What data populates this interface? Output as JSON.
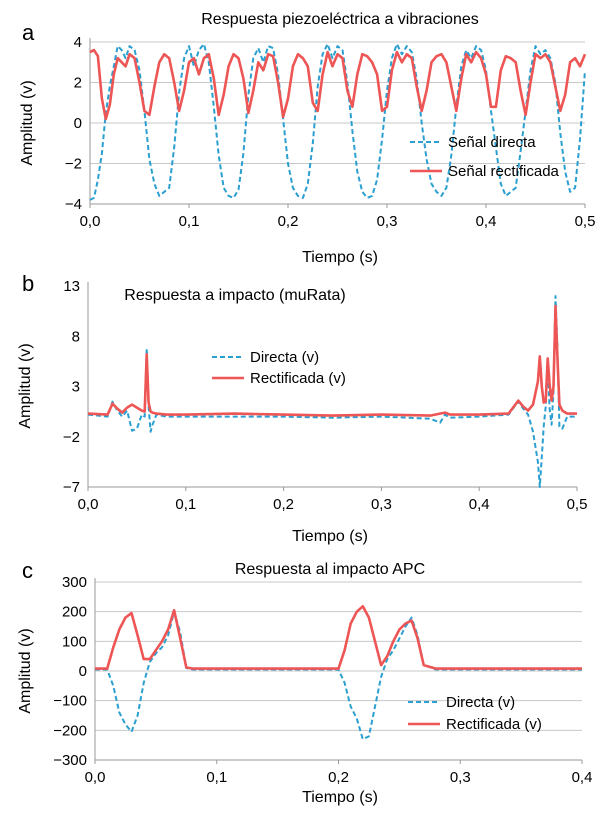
{
  "colors": {
    "direct": "#2a9fd0",
    "rectified": "#ee5555",
    "grid": "#c8c8c8",
    "axis": "#000000"
  },
  "chart_data": [
    {
      "panel_letter": "a",
      "type": "line",
      "title": "Respuesta piezoeléctrica a vibraciones",
      "xlabel": "Tiempo (s)",
      "ylabel": "Amplitud (v)",
      "xlim": [
        0,
        0.5
      ],
      "ylim": [
        -4,
        4
      ],
      "x_ticks": [
        "0,0",
        "0,1",
        "0,2",
        "0,3",
        "0,4",
        "0,5"
      ],
      "x_tick_values": [
        0,
        0.1,
        0.2,
        0.3,
        0.4,
        0.5
      ],
      "y_ticks": [
        "4",
        "2",
        "0",
        "−2",
        "−4"
      ],
      "y_tick_values": [
        4,
        2,
        0,
        -2,
        -4
      ],
      "grid": "horizontal",
      "legend_position": "right-inside",
      "series": [
        {
          "name": "Señal directa",
          "style": "dashed",
          "x": [
            0,
            0.004,
            0.008,
            0.012,
            0.016,
            0.02,
            0.024,
            0.028,
            0.032,
            0.036,
            0.04,
            0.045,
            0.05,
            0.055,
            0.06,
            0.065,
            0.07,
            0.075,
            0.08,
            0.085,
            0.09,
            0.095,
            0.1,
            0.105,
            0.11,
            0.115,
            0.12,
            0.125,
            0.13,
            0.135,
            0.14,
            0.145,
            0.15,
            0.155,
            0.16,
            0.165,
            0.17,
            0.175,
            0.18,
            0.185,
            0.19,
            0.195,
            0.2,
            0.205,
            0.21,
            0.215,
            0.22,
            0.225,
            0.23,
            0.235,
            0.24,
            0.245,
            0.25,
            0.255,
            0.26,
            0.265,
            0.27,
            0.275,
            0.28,
            0.285,
            0.29,
            0.295,
            0.3,
            0.305,
            0.31,
            0.315,
            0.32,
            0.325,
            0.33,
            0.335,
            0.34,
            0.345,
            0.35,
            0.355,
            0.36,
            0.365,
            0.37,
            0.375,
            0.38,
            0.385,
            0.39,
            0.395,
            0.4,
            0.405,
            0.41,
            0.415,
            0.42,
            0.425,
            0.43,
            0.435,
            0.44,
            0.445,
            0.45,
            0.455,
            0.46,
            0.465,
            0.47,
            0.475,
            0.48,
            0.485,
            0.49,
            0.495,
            0.5
          ],
          "y": [
            -3.8,
            -3.7,
            -2.8,
            -1.5,
            0.5,
            1.8,
            2.8,
            3.8,
            3.6,
            3.2,
            3.8,
            3.6,
            2.6,
            0.6,
            -1.8,
            -3.0,
            -3.6,
            -3.4,
            -3.2,
            -1.2,
            1.5,
            3.2,
            3.8,
            2.8,
            3.6,
            3.9,
            3.0,
            0.8,
            -1.6,
            -3.2,
            -3.6,
            -3.7,
            -3.3,
            -1.5,
            1.4,
            3.2,
            3.7,
            3.0,
            3.8,
            3.7,
            2.4,
            0.2,
            -2.0,
            -3.2,
            -3.6,
            -3.7,
            -3.0,
            -1.0,
            1.8,
            3.4,
            3.9,
            3.2,
            3.8,
            3.6,
            2.0,
            -0.4,
            -2.4,
            -3.4,
            -3.7,
            -3.6,
            -2.8,
            -0.8,
            1.6,
            3.2,
            3.9,
            3.4,
            3.8,
            3.5,
            2.2,
            0.0,
            -1.8,
            -3.0,
            -3.4,
            -3.6,
            -3.2,
            -1.6,
            0.8,
            2.8,
            3.6,
            3.2,
            3.8,
            3.6,
            2.6,
            0.6,
            -1.2,
            -3.0,
            -3.6,
            -3.4,
            -3.2,
            -1.4,
            0.6,
            2.6,
            3.8,
            3.4,
            3.6,
            3.2,
            2.0,
            -0.5,
            -2.4,
            -3.4,
            -3.2,
            -0.8,
            2.6
          ]
        },
        {
          "name": "Señal rectificada",
          "style": "solid",
          "x": [
            0,
            0.004,
            0.008,
            0.012,
            0.016,
            0.02,
            0.024,
            0.028,
            0.032,
            0.036,
            0.04,
            0.045,
            0.05,
            0.055,
            0.06,
            0.065,
            0.07,
            0.075,
            0.08,
            0.085,
            0.09,
            0.095,
            0.1,
            0.105,
            0.11,
            0.115,
            0.12,
            0.125,
            0.13,
            0.135,
            0.14,
            0.145,
            0.15,
            0.155,
            0.16,
            0.165,
            0.17,
            0.175,
            0.18,
            0.185,
            0.19,
            0.195,
            0.2,
            0.205,
            0.21,
            0.215,
            0.22,
            0.225,
            0.23,
            0.235,
            0.24,
            0.245,
            0.25,
            0.255,
            0.26,
            0.265,
            0.27,
            0.275,
            0.28,
            0.285,
            0.29,
            0.295,
            0.3,
            0.305,
            0.31,
            0.315,
            0.32,
            0.325,
            0.33,
            0.335,
            0.34,
            0.345,
            0.35,
            0.355,
            0.36,
            0.365,
            0.37,
            0.375,
            0.38,
            0.385,
            0.39,
            0.395,
            0.4,
            0.405,
            0.41,
            0.415,
            0.42,
            0.425,
            0.43,
            0.435,
            0.44,
            0.445,
            0.45,
            0.455,
            0.46,
            0.465,
            0.47,
            0.475,
            0.48,
            0.485,
            0.49,
            0.495,
            0.5
          ],
          "y": [
            3.5,
            3.6,
            3.3,
            1.2,
            0.2,
            0.9,
            2.4,
            3.2,
            3.0,
            2.8,
            3.4,
            3.2,
            2.0,
            0.6,
            0.4,
            1.8,
            3.0,
            3.4,
            3.2,
            2.0,
            0.6,
            1.6,
            3.0,
            3.2,
            2.4,
            3.2,
            3.4,
            2.2,
            0.4,
            1.4,
            2.8,
            3.4,
            3.2,
            2.2,
            0.5,
            1.6,
            3.0,
            2.6,
            3.4,
            3.3,
            2.0,
            0.3,
            1.2,
            2.8,
            3.4,
            3.2,
            2.8,
            1.0,
            0.6,
            2.4,
            3.5,
            2.8,
            3.4,
            3.2,
            1.6,
            0.8,
            2.4,
            3.4,
            3.3,
            3.0,
            2.4,
            0.6,
            0.8,
            2.6,
            3.5,
            3.0,
            3.4,
            3.2,
            1.8,
            0.6,
            1.6,
            3.0,
            3.3,
            3.4,
            3.0,
            1.8,
            0.6,
            2.2,
            3.4,
            3.0,
            3.5,
            3.2,
            2.4,
            0.8,
            0.8,
            2.6,
            3.3,
            3.2,
            3.0,
            1.6,
            0.4,
            2.0,
            3.4,
            3.2,
            3.4,
            3.0,
            1.8,
            0.6,
            1.4,
            3.0,
            3.2,
            2.8,
            3.4
          ]
        }
      ]
    },
    {
      "panel_letter": "b",
      "type": "line",
      "title": "Respuesta a impacto (muRata)",
      "xlabel": "Tiempo (s)",
      "ylabel": "Amplitud (v)",
      "xlim": [
        0,
        0.5
      ],
      "ylim": [
        -7,
        13
      ],
      "x_ticks": [
        "0,0",
        "0,1",
        "0,2",
        "0,3",
        "0,4",
        "0,5"
      ],
      "x_tick_values": [
        0,
        0.1,
        0.2,
        0.3,
        0.4,
        0.5
      ],
      "y_ticks": [
        "13",
        "8",
        "3",
        "−2",
        "−7"
      ],
      "y_tick_values": [
        13,
        8,
        3,
        -2,
        -7
      ],
      "grid": "none",
      "legend_position": "center",
      "series": [
        {
          "name": "Directa (v)",
          "style": "dashed",
          "x": [
            0,
            0.02,
            0.025,
            0.03,
            0.035,
            0.04,
            0.045,
            0.05,
            0.055,
            0.058,
            0.06,
            0.062,
            0.064,
            0.066,
            0.07,
            0.08,
            0.1,
            0.15,
            0.2,
            0.25,
            0.3,
            0.35,
            0.36,
            0.365,
            0.37,
            0.4,
            0.43,
            0.44,
            0.445,
            0.45,
            0.455,
            0.46,
            0.462,
            0.464,
            0.466,
            0.468,
            0.47,
            0.472,
            0.474,
            0.476,
            0.478,
            0.48,
            0.482,
            0.485,
            0.49,
            0.5
          ],
          "y": [
            0.2,
            0.0,
            1.5,
            0.6,
            0.0,
            0.6,
            -1.4,
            -1.2,
            0.2,
            0.0,
            6.8,
            1.0,
            -1.5,
            -0.8,
            0.2,
            0.0,
            0.0,
            0.0,
            0.0,
            -0.1,
            0.0,
            -0.2,
            -0.6,
            0.2,
            -0.1,
            0.0,
            0.2,
            1.5,
            0.8,
            0.2,
            -1.5,
            -4.5,
            -7.0,
            -4.0,
            -1.0,
            1.0,
            5.5,
            0.8,
            -0.8,
            2.5,
            12.0,
            7.0,
            -1.0,
            -1.2,
            0.0,
            0.0
          ]
        },
        {
          "name": "Rectificada (v)",
          "style": "solid",
          "x": [
            0,
            0.02,
            0.025,
            0.03,
            0.035,
            0.04,
            0.045,
            0.05,
            0.055,
            0.058,
            0.06,
            0.062,
            0.064,
            0.066,
            0.07,
            0.08,
            0.1,
            0.15,
            0.2,
            0.25,
            0.3,
            0.35,
            0.36,
            0.365,
            0.37,
            0.4,
            0.43,
            0.44,
            0.445,
            0.45,
            0.455,
            0.46,
            0.462,
            0.464,
            0.466,
            0.468,
            0.47,
            0.472,
            0.474,
            0.476,
            0.478,
            0.48,
            0.482,
            0.485,
            0.49,
            0.5
          ],
          "y": [
            0.3,
            0.2,
            1.3,
            0.8,
            0.4,
            0.9,
            1.2,
            0.9,
            0.6,
            0.5,
            6.2,
            1.4,
            0.5,
            0.4,
            0.3,
            0.2,
            0.2,
            0.3,
            0.2,
            0.1,
            0.2,
            0.1,
            0.3,
            0.4,
            0.2,
            0.2,
            0.3,
            1.6,
            1.0,
            0.6,
            1.2,
            3.5,
            6.0,
            3.0,
            1.4,
            1.5,
            5.8,
            3.2,
            1.6,
            3.0,
            11.0,
            6.0,
            1.2,
            0.6,
            0.3,
            0.3
          ]
        }
      ]
    },
    {
      "panel_letter": "c",
      "type": "line",
      "title": "Respuesta al impacto APC",
      "xlabel": "Tiempo (s)",
      "ylabel": "Amplitud (v)",
      "xlim": [
        0,
        0.4
      ],
      "ylim": [
        -300,
        300
      ],
      "x_ticks": [
        "0,0",
        "0,1",
        "0,2",
        "0,3",
        "0,4"
      ],
      "x_tick_values": [
        0,
        0.1,
        0.2,
        0.3,
        0.4
      ],
      "y_ticks": [
        "300",
        "200",
        "100",
        "0",
        "−100",
        "−200",
        "−300"
      ],
      "y_tick_values": [
        300,
        200,
        100,
        0,
        -100,
        -200,
        -300
      ],
      "grid": "horizontal",
      "legend_position": "bottom-right",
      "series": [
        {
          "name": "Directa (v)",
          "style": "dashed",
          "x": [
            0,
            0.01,
            0.015,
            0.02,
            0.025,
            0.03,
            0.035,
            0.04,
            0.045,
            0.05,
            0.055,
            0.06,
            0.065,
            0.07,
            0.075,
            0.08,
            0.1,
            0.15,
            0.2,
            0.205,
            0.21,
            0.215,
            0.22,
            0.225,
            0.23,
            0.235,
            0.24,
            0.245,
            0.25,
            0.255,
            0.26,
            0.265,
            0.27,
            0.28,
            0.3,
            0.35,
            0.4
          ],
          "y": [
            5,
            5,
            -50,
            -140,
            -180,
            -205,
            -150,
            -40,
            30,
            60,
            80,
            120,
            200,
            130,
            10,
            5,
            5,
            5,
            5,
            -40,
            -120,
            -160,
            -230,
            -220,
            -120,
            -20,
            40,
            70,
            110,
            150,
            180,
            120,
            20,
            5,
            5,
            5,
            5
          ]
        },
        {
          "name": "Rectificada (v)",
          "style": "solid",
          "x": [
            0,
            0.01,
            0.015,
            0.02,
            0.025,
            0.03,
            0.035,
            0.04,
            0.045,
            0.05,
            0.055,
            0.06,
            0.065,
            0.07,
            0.075,
            0.08,
            0.1,
            0.15,
            0.2,
            0.205,
            0.21,
            0.215,
            0.22,
            0.225,
            0.23,
            0.235,
            0.24,
            0.245,
            0.25,
            0.255,
            0.26,
            0.265,
            0.27,
            0.28,
            0.3,
            0.35,
            0.4
          ],
          "y": [
            8,
            8,
            80,
            140,
            180,
            195,
            120,
            40,
            40,
            70,
            100,
            140,
            205,
            110,
            12,
            8,
            8,
            8,
            8,
            70,
            160,
            200,
            218,
            180,
            100,
            20,
            50,
            100,
            140,
            160,
            170,
            110,
            20,
            8,
            8,
            8,
            8
          ]
        }
      ]
    }
  ]
}
